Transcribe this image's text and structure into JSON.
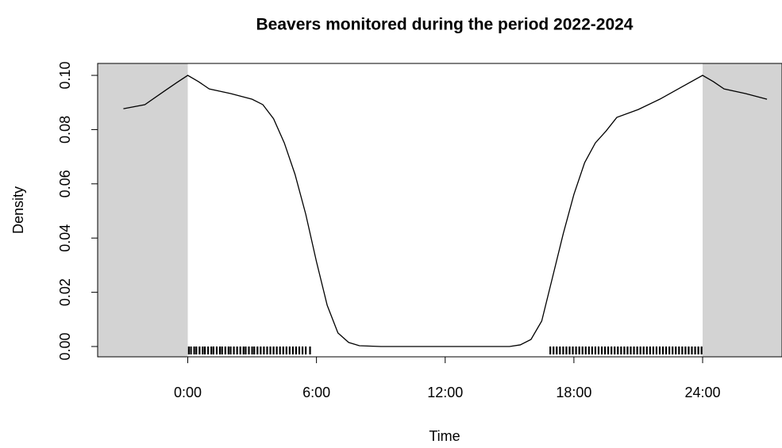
{
  "chart_data": {
    "type": "line",
    "title": "Beavers monitored during the period 2022-2024",
    "x_label": "Time",
    "y_label": "Density",
    "color": "#000000",
    "extend_color": "#d3d3d3",
    "period": [
      0,
      24
    ],
    "x": [
      -3,
      -2,
      -1,
      -0.5,
      0,
      0.5,
      1,
      2,
      3,
      3.5,
      4,
      4.5,
      5,
      5.5,
      6,
      6.5,
      7,
      7.5,
      8,
      9,
      10,
      11,
      12,
      13,
      14,
      15,
      15.5,
      16,
      16.5,
      17,
      17.5,
      18,
      18.5,
      19,
      19.5,
      20,
      21,
      22,
      23,
      24,
      24.5,
      25,
      26,
      27
    ],
    "values": [
      0.0877,
      0.0892,
      0.0947,
      0.0974,
      0.1,
      0.0977,
      0.095,
      0.0933,
      0.0912,
      0.0892,
      0.084,
      0.0751,
      0.0635,
      0.0488,
      0.0313,
      0.0152,
      0.005,
      0.0015,
      0.0003,
      0,
      0,
      0,
      0,
      0,
      0,
      0,
      0.0006,
      0.0026,
      0.0094,
      0.0254,
      0.0415,
      0.0561,
      0.0678,
      0.0751,
      0.0795,
      0.0845,
      0.0874,
      0.0912,
      0.0956,
      0.1,
      0.0977,
      0.095,
      0.0933,
      0.0912
    ],
    "rug": [
      0.05,
      0.15,
      0.3,
      0.4,
      0.55,
      0.7,
      0.8,
      0.95,
      1.1,
      1.2,
      1.35,
      1.5,
      1.6,
      1.75,
      1.9,
      2.0,
      2.15,
      2.3,
      2.45,
      2.6,
      2.7,
      2.85,
      3.0,
      3.1,
      3.25,
      3.4,
      3.55,
      3.7,
      3.85,
      4.0,
      4.15,
      4.3,
      4.45,
      4.6,
      4.75,
      4.9,
      5.05,
      5.2,
      5.35,
      5.5,
      5.7,
      16.9,
      17.05,
      17.2,
      17.35,
      17.5,
      17.65,
      17.8,
      17.95,
      18.1,
      18.25,
      18.4,
      18.55,
      18.7,
      18.85,
      19.0,
      19.15,
      19.3,
      19.45,
      19.6,
      19.75,
      19.9,
      20.05,
      20.2,
      20.35,
      20.5,
      20.65,
      20.8,
      20.95,
      21.1,
      21.25,
      21.4,
      21.55,
      21.7,
      21.85,
      22.0,
      22.15,
      22.3,
      22.45,
      22.6,
      22.75,
      22.9,
      23.05,
      23.2,
      23.35,
      23.5,
      23.65,
      23.8,
      23.95
    ],
    "xlim": [
      -4.2,
      27.7
    ],
    "ylim": [
      -0.0038,
      0.1044
    ],
    "xticks": [
      {
        "value": 0,
        "label": "0:00"
      },
      {
        "value": 6,
        "label": "6:00"
      },
      {
        "value": 12,
        "label": "12:00"
      },
      {
        "value": 18,
        "label": "18:00"
      },
      {
        "value": 24,
        "label": "24:00"
      }
    ],
    "yticks": [
      {
        "value": 0,
        "label": "0.00"
      },
      {
        "value": 0.02,
        "label": "0.02"
      },
      {
        "value": 0.04,
        "label": "0.04"
      },
      {
        "value": 0.06,
        "label": "0.06"
      },
      {
        "value": 0.08,
        "label": "0.08"
      },
      {
        "value": 0.1,
        "label": "0.10"
      }
    ]
  }
}
